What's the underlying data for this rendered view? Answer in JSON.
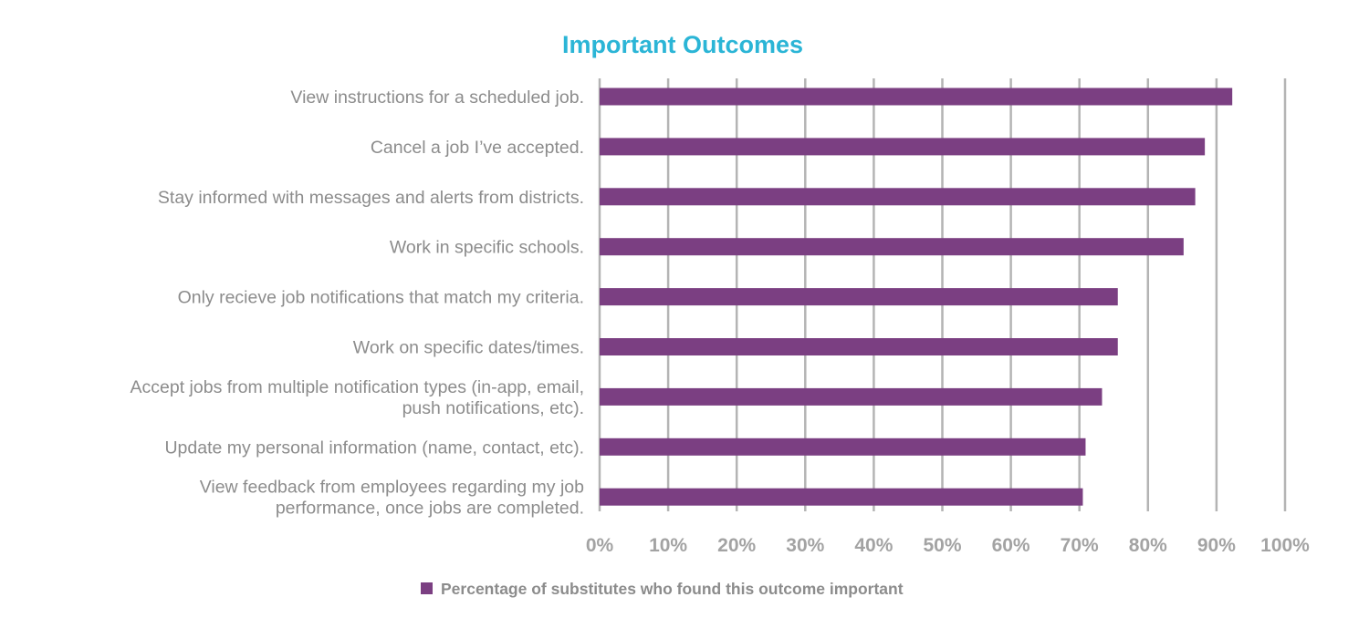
{
  "chart_data": {
    "type": "bar",
    "orientation": "horizontal",
    "title": "Important Outcomes",
    "categories": [
      [
        "View instructions for a scheduled job."
      ],
      [
        "Cancel a job I’ve accepted."
      ],
      [
        "Stay informed with messages and alerts from districts."
      ],
      [
        "Work in specific schools."
      ],
      [
        "Only recieve job notifications that match my criteria."
      ],
      [
        "Work on specific dates/times."
      ],
      [
        "Accept jobs from multiple notification types (in-app, email,",
        "push notifications, etc)."
      ],
      [
        "Update my personal information (name, contact, etc)."
      ],
      [
        "View feedback from employees regarding my job",
        "performance, once jobs are completed."
      ]
    ],
    "series": [
      {
        "name": "Percentage of substitutes who found this outcome important",
        "values": [
          92.3,
          88.3,
          86.9,
          85.2,
          75.6,
          75.6,
          73.3,
          70.9,
          70.5
        ]
      }
    ],
    "xlim": [
      0,
      100
    ],
    "xticks": [
      0,
      10,
      20,
      30,
      40,
      50,
      60,
      70,
      80,
      90,
      100
    ],
    "tick_suffix": "%",
    "grid": true,
    "legend_position": "bottom",
    "colors": {
      "bar": "#7b3f82",
      "grid": "#b4b4b4",
      "title": "#2bb5d6"
    }
  }
}
